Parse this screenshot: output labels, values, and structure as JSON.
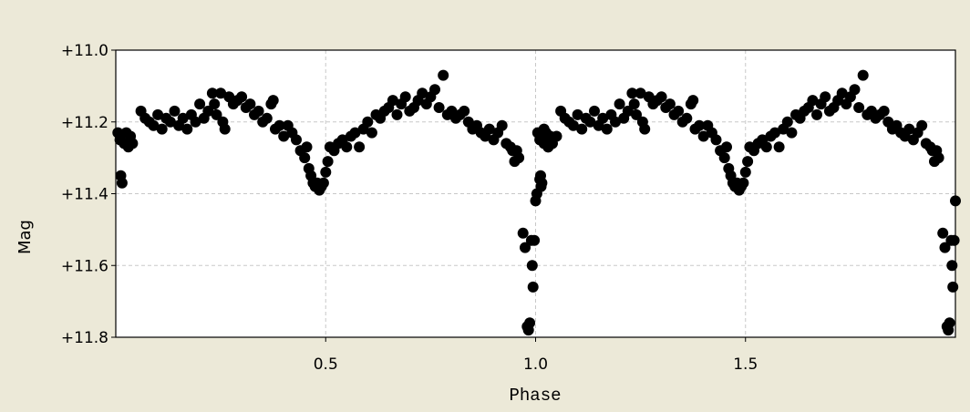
{
  "chart_data": {
    "type": "scatter",
    "title": "",
    "xlabel": "Phase",
    "ylabel": "Mag",
    "xlim": [
      0,
      2.0
    ],
    "ylim": [
      11.8,
      11.0
    ],
    "y_inverted": true,
    "grid": true,
    "grid_style": "dashed",
    "marker_color": "#000000",
    "x_ticks": [
      {
        "value": 0.5,
        "label": "0.5"
      },
      {
        "value": 1.0,
        "label": "1.0"
      },
      {
        "value": 1.5,
        "label": "1.5"
      }
    ],
    "y_ticks": [
      {
        "value": 11.0,
        "label": "+11.0"
      },
      {
        "value": 11.2,
        "label": "+11.2"
      },
      {
        "value": 11.4,
        "label": "+11.4"
      },
      {
        "value": 11.6,
        "label": "+11.6"
      },
      {
        "value": 11.8,
        "label": "+11.8"
      }
    ],
    "period_repeat": 1.0,
    "points": [
      [
        0.005,
        11.23
      ],
      [
        0.01,
        11.25
      ],
      [
        0.012,
        11.35
      ],
      [
        0.015,
        11.37
      ],
      [
        0.02,
        11.26
      ],
      [
        0.025,
        11.23
      ],
      [
        0.03,
        11.27
      ],
      [
        0.035,
        11.24
      ],
      [
        0.04,
        11.26
      ],
      [
        0.06,
        11.17
      ],
      [
        0.07,
        11.19
      ],
      [
        0.08,
        11.2
      ],
      [
        0.09,
        11.21
      ],
      [
        0.1,
        11.18
      ],
      [
        0.11,
        11.22
      ],
      [
        0.12,
        11.19
      ],
      [
        0.13,
        11.2
      ],
      [
        0.14,
        11.17
      ],
      [
        0.15,
        11.21
      ],
      [
        0.16,
        11.19
      ],
      [
        0.17,
        11.22
      ],
      [
        0.18,
        11.18
      ],
      [
        0.19,
        11.2
      ],
      [
        0.2,
        11.15
      ],
      [
        0.21,
        11.19
      ],
      [
        0.22,
        11.17
      ],
      [
        0.23,
        11.12
      ],
      [
        0.235,
        11.15
      ],
      [
        0.24,
        11.18
      ],
      [
        0.25,
        11.12
      ],
      [
        0.255,
        11.2
      ],
      [
        0.26,
        11.22
      ],
      [
        0.27,
        11.13
      ],
      [
        0.28,
        11.15
      ],
      [
        0.29,
        11.14
      ],
      [
        0.3,
        11.13
      ],
      [
        0.31,
        11.16
      ],
      [
        0.32,
        11.15
      ],
      [
        0.33,
        11.18
      ],
      [
        0.34,
        11.17
      ],
      [
        0.35,
        11.2
      ],
      [
        0.36,
        11.19
      ],
      [
        0.37,
        11.15
      ],
      [
        0.375,
        11.14
      ],
      [
        0.38,
        11.22
      ],
      [
        0.39,
        11.21
      ],
      [
        0.4,
        11.24
      ],
      [
        0.41,
        11.21
      ],
      [
        0.42,
        11.23
      ],
      [
        0.43,
        11.25
      ],
      [
        0.44,
        11.28
      ],
      [
        0.45,
        11.3
      ],
      [
        0.455,
        11.27
      ],
      [
        0.46,
        11.33
      ],
      [
        0.465,
        11.35
      ],
      [
        0.47,
        11.37
      ],
      [
        0.475,
        11.38
      ],
      [
        0.48,
        11.37
      ],
      [
        0.485,
        11.39
      ],
      [
        0.49,
        11.38
      ],
      [
        0.495,
        11.37
      ],
      [
        0.5,
        11.34
      ],
      [
        0.505,
        11.31
      ],
      [
        0.51,
        11.27
      ],
      [
        0.52,
        11.28
      ],
      [
        0.53,
        11.26
      ],
      [
        0.54,
        11.25
      ],
      [
        0.55,
        11.27
      ],
      [
        0.56,
        11.24
      ],
      [
        0.57,
        11.23
      ],
      [
        0.58,
        11.27
      ],
      [
        0.59,
        11.22
      ],
      [
        0.6,
        11.2
      ],
      [
        0.61,
        11.23
      ],
      [
        0.62,
        11.18
      ],
      [
        0.63,
        11.19
      ],
      [
        0.64,
        11.17
      ],
      [
        0.65,
        11.16
      ],
      [
        0.66,
        11.14
      ],
      [
        0.67,
        11.18
      ],
      [
        0.68,
        11.15
      ],
      [
        0.69,
        11.13
      ],
      [
        0.7,
        11.17
      ],
      [
        0.71,
        11.16
      ],
      [
        0.72,
        11.14
      ],
      [
        0.73,
        11.12
      ],
      [
        0.74,
        11.15
      ],
      [
        0.75,
        11.13
      ],
      [
        0.76,
        11.11
      ],
      [
        0.77,
        11.16
      ],
      [
        0.78,
        11.07
      ],
      [
        0.79,
        11.18
      ],
      [
        0.8,
        11.17
      ],
      [
        0.81,
        11.19
      ],
      [
        0.82,
        11.18
      ],
      [
        0.83,
        11.17
      ],
      [
        0.84,
        11.2
      ],
      [
        0.85,
        11.22
      ],
      [
        0.86,
        11.21
      ],
      [
        0.87,
        11.23
      ],
      [
        0.88,
        11.24
      ],
      [
        0.89,
        11.22
      ],
      [
        0.9,
        11.25
      ],
      [
        0.91,
        11.23
      ],
      [
        0.92,
        11.21
      ],
      [
        0.93,
        11.26
      ],
      [
        0.94,
        11.27
      ],
      [
        0.945,
        11.28
      ],
      [
        0.95,
        11.31
      ],
      [
        0.955,
        11.28
      ],
      [
        0.96,
        11.3
      ],
      [
        0.97,
        11.51
      ],
      [
        0.975,
        11.55
      ],
      [
        0.98,
        11.77
      ],
      [
        0.983,
        11.78
      ],
      [
        0.986,
        11.76
      ],
      [
        0.99,
        11.53
      ],
      [
        0.992,
        11.6
      ],
      [
        0.994,
        11.66
      ],
      [
        0.997,
        11.53
      ],
      [
        1.0,
        11.42
      ],
      [
        1.003,
        11.4
      ],
      [
        1.01,
        11.36
      ],
      [
        1.013,
        11.38
      ],
      [
        1.02,
        11.22
      ],
      [
        1.025,
        11.25
      ],
      [
        1.03,
        11.27
      ],
      [
        1.04,
        11.26
      ],
      [
        1.05,
        11.24
      ]
    ]
  }
}
